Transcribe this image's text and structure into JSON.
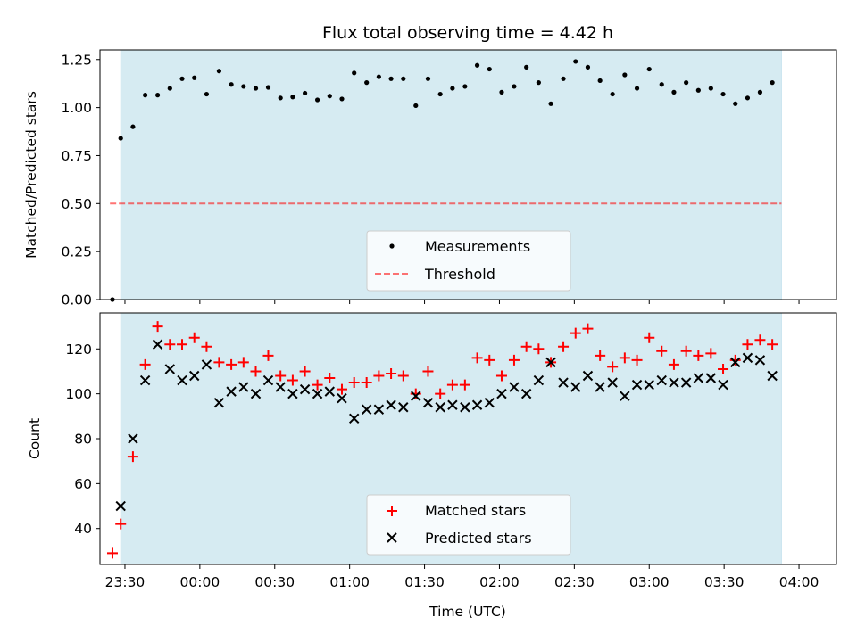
{
  "chart_data": [
    {
      "type": "scatter",
      "title": "Flux total observing time = 4.42 h",
      "ylabel": "Matched/Predicted stars",
      "xlabel": "",
      "ylim": [
        0,
        1.3
      ],
      "xlim_minutes": [
        -40,
        255
      ],
      "shaded_span_minutes": [
        -31.7,
        233
      ],
      "yticks": [
        {
          "v": 0,
          "l": "0.00"
        },
        {
          "v": 0.25,
          "l": "0.25"
        },
        {
          "v": 0.5,
          "l": "0.50"
        },
        {
          "v": 0.75,
          "l": "0.75"
        },
        {
          "v": 1.0,
          "l": "1.00"
        },
        {
          "v": 1.25,
          "l": "1.25"
        }
      ],
      "threshold": {
        "value": 0.5,
        "x_range_minutes": [
          -36,
          233
        ]
      },
      "legend": {
        "position": "lower-center",
        "entries": [
          "Measurements",
          "Threshold"
        ]
      },
      "series": [
        {
          "name": "Measurements",
          "x": [
            -35.0,
            -31.7,
            -26.8,
            -21.9,
            -16.9,
            -12.0,
            -7.1,
            -2.2,
            2.7,
            7.7,
            12.6,
            17.5,
            22.4,
            27.4,
            32.3,
            37.2,
            42.1,
            47.1,
            52.0,
            56.9,
            61.8,
            66.8,
            71.7,
            76.6,
            81.5,
            86.5,
            91.4,
            96.3,
            101.2,
            106.2,
            111.1,
            116.0,
            120.9,
            125.9,
            130.8,
            135.7,
            140.6,
            145.6,
            150.5,
            155.4,
            160.3,
            165.3,
            170.2,
            175.1,
            180.0,
            185.0,
            189.9,
            194.8,
            199.7,
            204.7,
            209.6,
            214.5,
            219.4,
            224.4,
            229.3
          ],
          "y": [
            0.0,
            0.84,
            0.9,
            1.065,
            1.065,
            1.1,
            1.15,
            1.155,
            1.07,
            1.19,
            1.12,
            1.11,
            1.1,
            1.105,
            1.05,
            1.055,
            1.075,
            1.04,
            1.06,
            1.045,
            1.18,
            1.13,
            1.16,
            1.15,
            1.15,
            1.01,
            1.15,
            1.07,
            1.1,
            1.11,
            1.22,
            1.2,
            1.08,
            1.11,
            1.21,
            1.13,
            1.02,
            1.15,
            1.24,
            1.21,
            1.14,
            1.07,
            1.17,
            1.1,
            1.2,
            1.12,
            1.08,
            1.13,
            1.09,
            1.1,
            1.07,
            1.02,
            1.05,
            1.08,
            1.13
          ]
        }
      ]
    },
    {
      "type": "scatter",
      "title": "",
      "ylabel": "Count",
      "xlabel": "Time (UTC)",
      "ylim": [
        24,
        136
      ],
      "xlim_minutes": [
        -40,
        255
      ],
      "shaded_span_minutes": [
        -31.7,
        233
      ],
      "yticks": [
        {
          "v": 40,
          "l": "40"
        },
        {
          "v": 60,
          "l": "60"
        },
        {
          "v": 80,
          "l": "80"
        },
        {
          "v": 100,
          "l": "100"
        },
        {
          "v": 120,
          "l": "120"
        }
      ],
      "xticks": [
        {
          "v": -30,
          "l": "23:30"
        },
        {
          "v": 0,
          "l": "00:00"
        },
        {
          "v": 30,
          "l": "00:30"
        },
        {
          "v": 60,
          "l": "01:00"
        },
        {
          "v": 90,
          "l": "01:30"
        },
        {
          "v": 120,
          "l": "02:00"
        },
        {
          "v": 150,
          "l": "02:30"
        },
        {
          "v": 180,
          "l": "03:00"
        },
        {
          "v": 210,
          "l": "03:30"
        },
        {
          "v": 240,
          "l": "04:00"
        }
      ],
      "legend": {
        "position": "lower-center",
        "entries": [
          "Matched stars",
          "Predicted stars"
        ]
      },
      "series": [
        {
          "name": "Matched stars",
          "color": "#ff0000",
          "marker": "plus",
          "x": [
            -35.0,
            -31.7,
            -26.8,
            -21.9,
            -16.9,
            -12.0,
            -7.1,
            -2.2,
            2.7,
            7.7,
            12.6,
            17.5,
            22.4,
            27.4,
            32.3,
            37.2,
            42.1,
            47.1,
            52.0,
            56.9,
            61.8,
            66.8,
            71.7,
            76.6,
            81.5,
            86.5,
            91.4,
            96.3,
            101.2,
            106.2,
            111.1,
            116.0,
            120.9,
            125.9,
            130.8,
            135.7,
            140.6,
            145.6,
            150.5,
            155.4,
            160.3,
            165.3,
            170.2,
            175.1,
            180.0,
            185.0,
            189.9,
            194.8,
            199.7,
            204.7,
            209.6,
            214.5,
            219.4,
            224.4,
            229.3
          ],
          "y": [
            29,
            42,
            72,
            113,
            130,
            122,
            122,
            125,
            121,
            114,
            113,
            114,
            110,
            117,
            108,
            106,
            110,
            104,
            107,
            102,
            105,
            105,
            108,
            109,
            108,
            100,
            110,
            100,
            104,
            104,
            116,
            115,
            108,
            115,
            121,
            120,
            114,
            121,
            127,
            129,
            117,
            112,
            116,
            115,
            125,
            119,
            113,
            119,
            117,
            118,
            111,
            115,
            122,
            124,
            122
          ]
        },
        {
          "name": "Predicted stars",
          "color": "#000000",
          "marker": "x",
          "x": [
            -31.7,
            -26.8,
            -21.9,
            -16.9,
            -12.0,
            -7.1,
            -2.2,
            2.7,
            7.7,
            12.6,
            17.5,
            22.4,
            27.4,
            32.3,
            37.2,
            42.1,
            47.1,
            52.0,
            56.9,
            61.8,
            66.8,
            71.7,
            76.6,
            81.5,
            86.5,
            91.4,
            96.3,
            101.2,
            106.2,
            111.1,
            116.0,
            120.9,
            125.9,
            130.8,
            135.7,
            140.6,
            145.6,
            150.5,
            155.4,
            160.3,
            165.3,
            170.2,
            175.1,
            180.0,
            185.0,
            189.9,
            194.8,
            199.7,
            204.7,
            209.6,
            214.5,
            219.4,
            224.4,
            229.3
          ],
          "y": [
            50,
            80,
            106,
            122,
            111,
            106,
            108,
            113,
            96,
            101,
            103,
            100,
            106,
            103,
            100,
            102,
            100,
            101,
            98,
            89,
            93,
            93,
            95,
            94,
            99,
            96,
            94,
            95,
            94,
            95,
            96,
            100,
            103,
            100,
            106,
            114,
            105,
            103,
            108,
            103,
            105,
            99,
            104,
            104,
            106,
            105,
            105,
            107,
            107,
            104,
            114,
            116,
            115,
            108
          ]
        }
      ]
    }
  ]
}
